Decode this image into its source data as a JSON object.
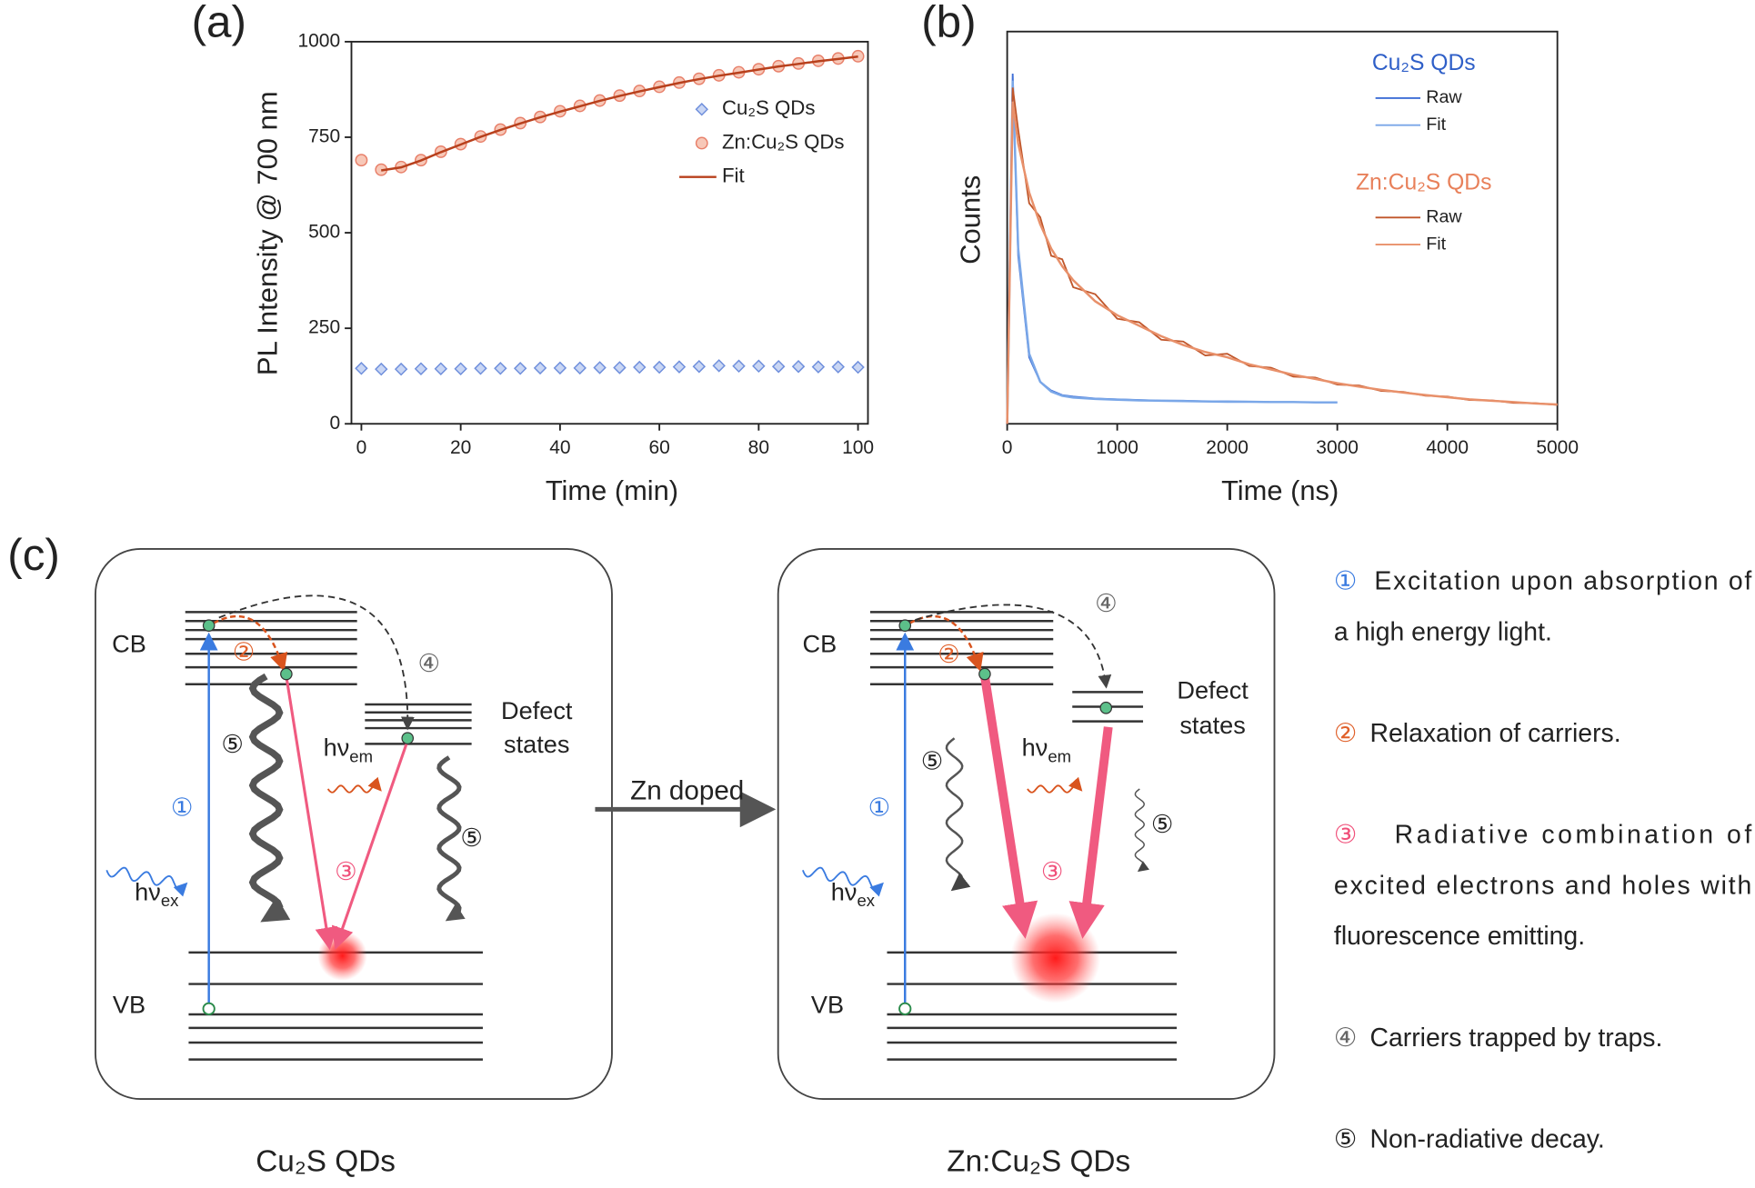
{
  "chart_data": [
    {
      "type": "scatter",
      "panel_label": "(a)",
      "xlabel": "Time (min)",
      "ylabel": "PL Intensity @ 700 nm",
      "xlim": [
        -2,
        102
      ],
      "ylim": [
        0,
        1000
      ],
      "xticks": [
        0,
        20,
        40,
        60,
        80,
        100
      ],
      "yticks": [
        0,
        250,
        500,
        750,
        1000
      ],
      "x": [
        0,
        4,
        8,
        12,
        16,
        20,
        24,
        28,
        32,
        36,
        40,
        44,
        48,
        52,
        56,
        60,
        64,
        68,
        72,
        76,
        80,
        84,
        88,
        92,
        96,
        100
      ],
      "series": [
        {
          "name": "Cu₂S QDs",
          "color": "#6f8fdc",
          "marker": "diamond",
          "values": [
            145,
            143,
            143,
            144,
            144,
            144,
            145,
            145,
            145,
            146,
            146,
            146,
            147,
            147,
            148,
            148,
            149,
            150,
            152,
            151,
            151,
            150,
            150,
            149,
            149,
            148
          ]
        },
        {
          "name": "Zn:Cu₂S QDs",
          "color": "#e8806a",
          "marker": "circle",
          "values": [
            690,
            665,
            672,
            690,
            712,
            732,
            752,
            770,
            787,
            803,
            818,
            832,
            846,
            859,
            871,
            882,
            893,
            903,
            912,
            920,
            928,
            936,
            943,
            950,
            956,
            962
          ]
        },
        {
          "name": "Fit",
          "color": "#b8401c",
          "marker": "none",
          "values": [
            null,
            663,
            671,
            689,
            711,
            731,
            751,
            769,
            786,
            802,
            817,
            831,
            845,
            858,
            870,
            881,
            892,
            902,
            911,
            919,
            927,
            935,
            942,
            949,
            955,
            961
          ]
        }
      ]
    },
    {
      "type": "line",
      "panel_label": "(b)",
      "xlabel": "Time (ns)",
      "ylabel": "Counts",
      "xlim": [
        0,
        5000
      ],
      "ylim": [
        0,
        1.12
      ],
      "xticks": [
        0,
        1000,
        2000,
        3000,
        4000,
        5000
      ],
      "x": [
        0,
        50,
        100,
        200,
        300,
        400,
        500,
        600,
        800,
        1000,
        1200,
        1400,
        1600,
        1800,
        2000,
        2200,
        2400,
        2600,
        2800,
        3000,
        3200,
        3400,
        3600,
        3800,
        4000,
        4200,
        4400,
        4600,
        4800,
        5000
      ],
      "groups": [
        {
          "name": "Cu₂S QDs",
          "color": "#2f5fc8",
          "series": [
            {
              "name": "Raw",
              "color": "#3f6fd6",
              "values": [
                0,
                1.0,
                0.48,
                0.19,
                0.12,
                0.095,
                0.082,
                0.078,
                0.072,
                0.07,
                0.068,
                0.066,
                0.066,
                0.064,
                0.064,
                0.063,
                0.062,
                0.062,
                0.061,
                0.061,
                null,
                null,
                null,
                null,
                null,
                null,
                null,
                null,
                null,
                null
              ]
            },
            {
              "name": "Fit",
              "color": "#7aa7e8",
              "values": [
                0,
                0.98,
                0.5,
                0.2,
                0.12,
                0.092,
                0.08,
                0.075,
                0.071,
                0.069,
                0.067,
                0.066,
                0.065,
                0.064,
                0.063,
                0.063,
                0.062,
                0.062,
                0.061,
                0.061,
                null,
                null,
                null,
                null,
                null,
                null,
                null,
                null,
                null,
                null
              ]
            }
          ]
        },
        {
          "name": "Zn:Cu₂S QDs",
          "color": "#e8805a",
          "series": [
            {
              "name": "Raw",
              "color": "#c0562a",
              "values": [
                0,
                0.96,
                0.84,
                0.63,
                0.59,
                0.48,
                0.47,
                0.39,
                0.37,
                0.3,
                0.29,
                0.24,
                0.235,
                0.195,
                0.2,
                0.165,
                0.16,
                0.135,
                0.132,
                0.112,
                0.109,
                0.094,
                0.091,
                0.08,
                0.078,
                0.068,
                0.067,
                0.06,
                0.059,
                0.054
              ]
            },
            {
              "name": "Fit",
              "color": "#e8906a",
              "values": [
                0,
                0.92,
                0.8,
                0.66,
                0.57,
                0.5,
                0.45,
                0.41,
                0.35,
                0.31,
                0.28,
                0.25,
                0.225,
                0.205,
                0.19,
                0.17,
                0.155,
                0.14,
                0.128,
                0.116,
                0.106,
                0.097,
                0.089,
                0.082,
                0.076,
                0.07,
                0.066,
                0.062,
                0.058,
                0.055
              ]
            }
          ]
        }
      ]
    }
  ],
  "diagram": {
    "panel_label": "(c)",
    "arrow": "Zn doped",
    "left": {
      "cb": "CB",
      "vb": "VB",
      "defect": [
        "Defect",
        "states"
      ],
      "hv_ex": "hν",
      "hv_ex_sub": "ex",
      "hv_em": "hν",
      "hv_em_sub": "em",
      "steps": [
        "①",
        "②",
        "③",
        "④",
        "⑤",
        "⑤"
      ],
      "caption": "Cu₂S QDs"
    },
    "right": {
      "cb": "CB",
      "vb": "VB",
      "defect": [
        "Defect",
        "states"
      ],
      "hv_ex": "hν",
      "hv_ex_sub": "ex",
      "hv_em": "hν",
      "hv_em_sub": "em",
      "steps": [
        "①",
        "②",
        "③",
        "④",
        "⑤",
        "⑤"
      ],
      "caption": "Zn:Cu₂S QDs"
    },
    "legend": [
      {
        "num": "①",
        "lines": [
          "Excitation upon absorption of",
          "a high energy light."
        ]
      },
      {
        "num": "②",
        "lines": [
          "Relaxation of carriers."
        ]
      },
      {
        "num": "③",
        "lines": [
          "Radiative combination of",
          "excited electrons and holes with",
          "fluorescence emitting."
        ]
      },
      {
        "num": "④",
        "lines": [
          "Carriers trapped by traps."
        ]
      },
      {
        "num": "⑤",
        "lines": [
          "Non-radiative decay."
        ]
      }
    ]
  }
}
